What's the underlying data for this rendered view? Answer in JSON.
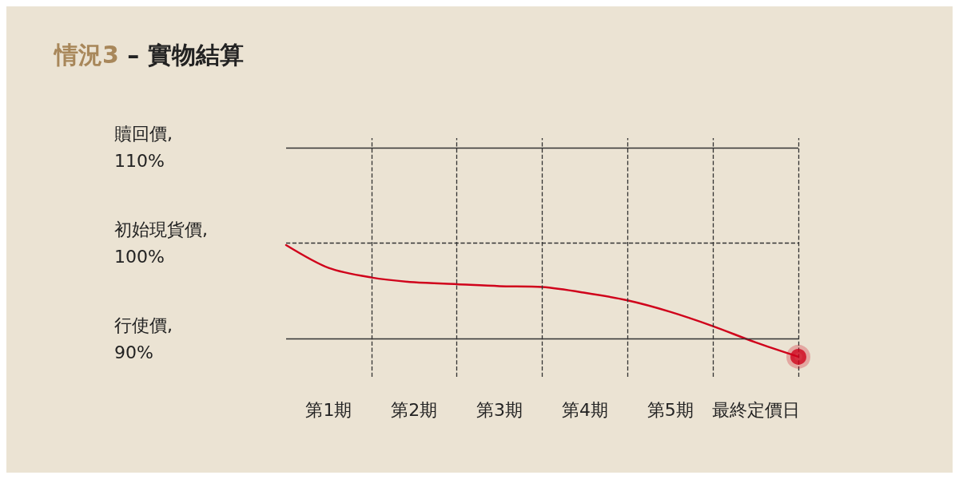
{
  "chart_data": {
    "type": "line",
    "title": "情況3 – 實物結算",
    "marker": "none",
    "grid": "x",
    "categories": [
      null,
      "第1期",
      null,
      "第2期",
      null,
      "第3期",
      null,
      "第4期",
      null,
      "第5期",
      null,
      "最終定價日",
      null
    ],
    "ylim": [
      86,
      111
    ],
    "yticks": [
      {
        "value": 110,
        "label": "贖回價,\n110%"
      },
      {
        "value": 100,
        "label": "初始現貨價,\n100%"
      },
      {
        "value": 90,
        "label": "行使價,\n90%"
      }
    ],
    "ref_lines": [
      {
        "axis": "y",
        "value": 110,
        "color": "#333333",
        "line_style": "solid"
      },
      {
        "axis": "y",
        "value": 100,
        "color": "#333333",
        "line_style": "dashed"
      },
      {
        "axis": "y",
        "value": 90,
        "color": "#333333",
        "line_style": "solid"
      }
    ],
    "series": [
      {
        "color": "#d0021b",
        "values": [
          99.8,
          97.4,
          96.4,
          95.9,
          95.7,
          95.5,
          95.4,
          94.8,
          94.0,
          92.8,
          91.3,
          89.6,
          88.1
        ]
      },
      {
        "type": "scatter",
        "color": "#d0021b",
        "marker": "circle",
        "values": [
          null,
          null,
          null,
          null,
          null,
          null,
          null,
          null,
          null,
          null,
          null,
          null,
          88.1
        ]
      }
    ]
  }
}
